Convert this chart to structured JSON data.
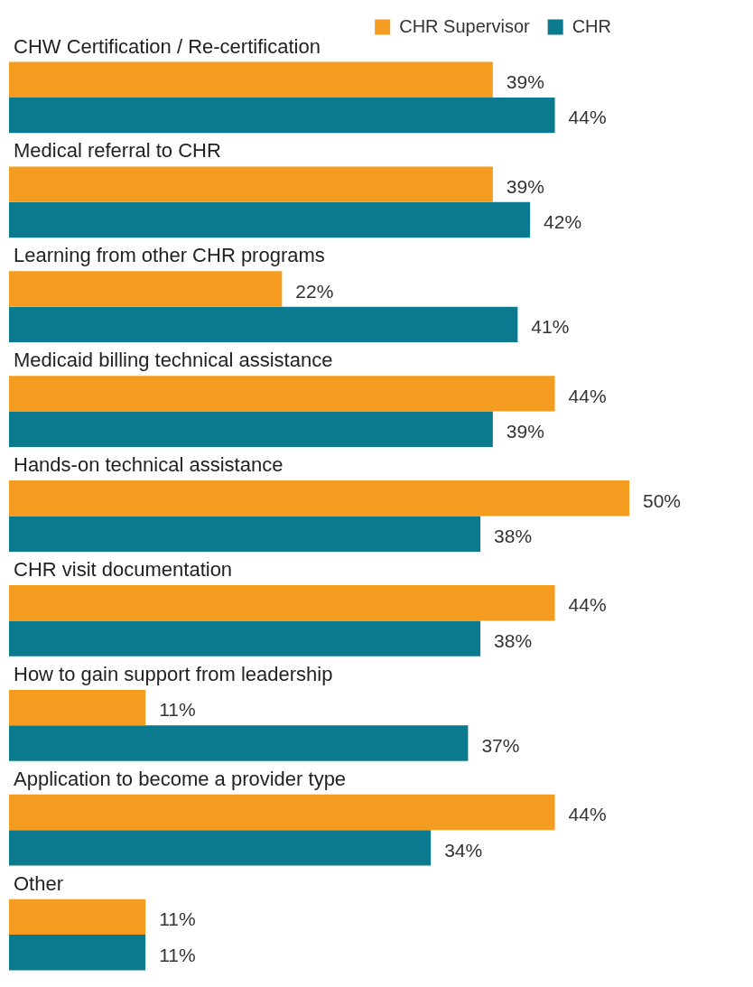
{
  "chart_data": {
    "type": "bar",
    "orientation": "horizontal",
    "legend": "top right",
    "categories": [
      "CHW Certification / Re-certification",
      "Medical referral to CHR",
      "Learning from other CHR programs",
      "Medicaid billing technical assistance",
      "Hands-on technical assistance",
      "CHR visit documentation",
      "How to gain support from leadership",
      "Application to become a provider type",
      "Other"
    ],
    "series": [
      {
        "name": "CHR Supervisor",
        "color": "#f39c1f",
        "values": [
          39,
          39,
          22,
          44,
          50,
          44,
          11,
          44,
          11
        ],
        "value_labels": [
          "39%",
          "39%",
          "22%",
          "44%",
          "50%",
          "44%",
          "11%",
          "44%",
          "11%"
        ]
      },
      {
        "name": "CHR",
        "color": "#0b7a8f",
        "values": [
          44,
          42,
          41,
          39,
          38,
          38,
          37,
          34,
          11
        ],
        "value_labels": [
          "44%",
          "42%",
          "41%",
          "39%",
          "38%",
          "38%",
          "37%",
          "34%",
          "11%"
        ]
      }
    ]
  }
}
